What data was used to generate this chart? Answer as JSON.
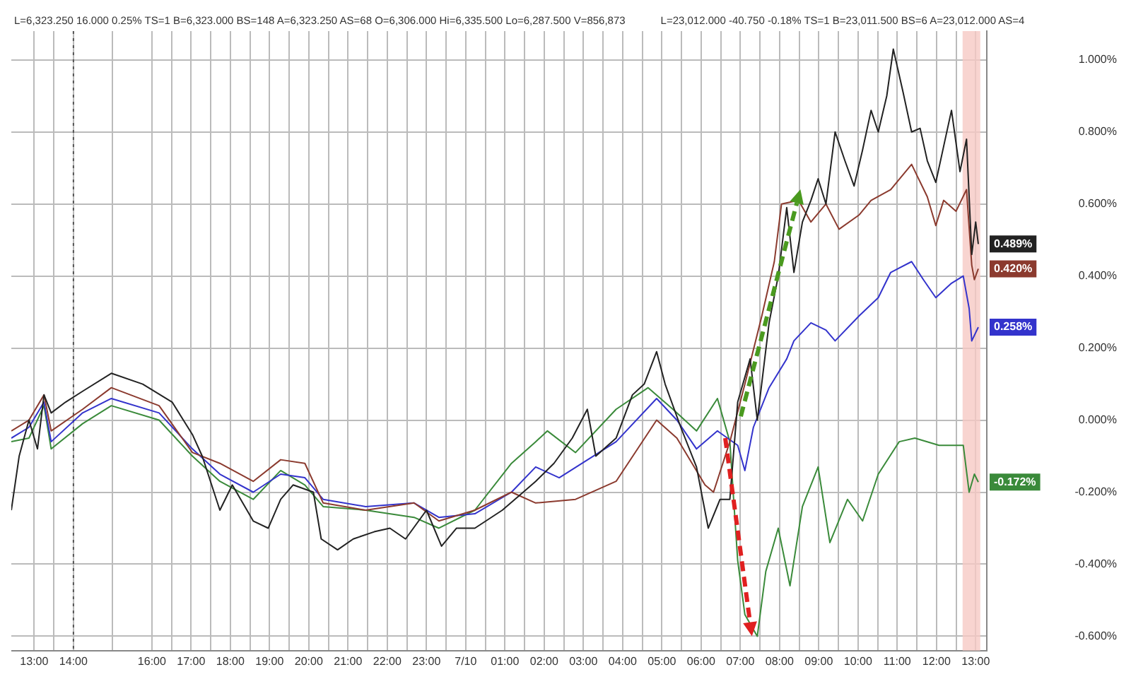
{
  "chart_data": {
    "type": "line",
    "annotations": [
      "L=6,323.250 16.000 0.25% TS=1 B=6,323.000 BS=148 A=6,323.250 AS=68 O=6,306.000 Hi=6,335.500 Lo=6,287.500 V=856,873",
      "L=23,012.000 -40.750 -0.18% TS=1 B=23,011.500 BS=6 A=23,012.000 AS=4"
    ],
    "series": [
      {
        "color": "#222222",
        "x": [
          "--07-09T12:25",
          "--07-09T12:37",
          "--07-09T12:52",
          "--07-09T13:05",
          "--07-09T13:15",
          "--07-09T13:26",
          "--07-09T13:48",
          "--07-09T14:14",
          "--07-09T14:58",
          "--07-09T15:46",
          "--07-09T16:31",
          "--07-09T17:02",
          "--07-09T17:17",
          "--07-09T17:44",
          "--07-09T18:03",
          "--07-09T18:35",
          "--07-09T18:58",
          "--07-09T19:17",
          "--07-09T19:36",
          "--07-09T20:07",
          "--07-09T20:19",
          "--07-09T20:44",
          "--07-09T21:08",
          "--07-09T21:40",
          "--07-09T22:04",
          "--07-09T22:28",
          "--07-09T23:00",
          "--07-09T23:23",
          "--07-09T23:46",
          "--07-10T00:14",
          "--07-10T00:56",
          "--07-10T01:28",
          "--07-10T01:47",
          "--07-10T02:15",
          "--07-10T02:43",
          "--07-10T03:06",
          "--07-10T03:19",
          "--07-10T03:50",
          "--07-10T04:15",
          "--07-10T04:33",
          "--07-10T04:52",
          "--07-10T05:05",
          "--07-10T05:29",
          "--07-10T05:53",
          "--07-10T06:11",
          "--07-10T06:29",
          "--07-10T06:44",
          "--07-10T06:56",
          "--07-10T07:15",
          "--07-10T07:26",
          "--07-10T07:44",
          "--07-10T07:58",
          "--07-10T08:11",
          "--07-10T08:22",
          "--07-10T08:35",
          "--07-10T08:48",
          "--07-10T08:59",
          "--07-10T09:11",
          "--07-10T09:25",
          "--07-10T09:40",
          "--07-10T09:54",
          "--07-10T10:07",
          "--07-10T10:20",
          "--07-10T10:31",
          "--07-10T10:44",
          "--07-10T10:54",
          "--07-10T11:09",
          "--07-10T11:22",
          "--07-10T11:35",
          "--07-10T11:46",
          "--07-10T11:59",
          "--07-10T12:11",
          "--07-10T12:23",
          "--07-10T12:36",
          "--07-10T12:46",
          "--07-10T12:54",
          "--07-10T13:00",
          "--07-10T13:04"
        ],
        "values": [
          -0.25,
          -0.1,
          0.0,
          -0.08,
          0.07,
          0.02,
          0.05,
          0.08,
          0.13,
          0.1,
          0.05,
          -0.04,
          -0.1,
          -0.25,
          -0.18,
          -0.28,
          -0.3,
          -0.22,
          -0.18,
          -0.2,
          -0.33,
          -0.36,
          -0.33,
          -0.31,
          -0.3,
          -0.33,
          -0.25,
          -0.35,
          -0.3,
          -0.3,
          -0.25,
          -0.2,
          -0.17,
          -0.12,
          -0.05,
          0.03,
          -0.1,
          -0.05,
          0.07,
          0.1,
          0.19,
          0.1,
          -0.02,
          -0.13,
          -0.3,
          -0.22,
          -0.22,
          0.05,
          0.17,
          0.0,
          0.27,
          0.4,
          0.59,
          0.41,
          0.55,
          0.61,
          0.67,
          0.6,
          0.8,
          0.72,
          0.65,
          0.75,
          0.86,
          0.8,
          0.9,
          1.03,
          0.91,
          0.8,
          0.81,
          0.72,
          0.66,
          0.76,
          0.86,
          0.69,
          0.78,
          0.46,
          0.55,
          0.489
        ],
        "value_labels": [
          null,
          null,
          null,
          null,
          null,
          null,
          null,
          null,
          null,
          null,
          null,
          null,
          null,
          null,
          null,
          null,
          null,
          null,
          null,
          null,
          null,
          null,
          null,
          null,
          null,
          null,
          null,
          null,
          null,
          null,
          null,
          null,
          null,
          null,
          null,
          null,
          null,
          null,
          null,
          null,
          null,
          null,
          null,
          null,
          null,
          null,
          null,
          null,
          null,
          null,
          null,
          null,
          null,
          null,
          null,
          null,
          null,
          null,
          null,
          null,
          null,
          null,
          null,
          null,
          null,
          null,
          null,
          null,
          null,
          null,
          null,
          null,
          null,
          null,
          null,
          null,
          null,
          "0.489%"
        ]
      },
      {
        "color": "#8b3a2e",
        "x": [
          "--07-09T12:25",
          "--07-09T12:52",
          "--07-09T13:15",
          "--07-09T13:26",
          "--07-09T14:14",
          "--07-09T14:58",
          "--07-09T16:11",
          "--07-09T17:02",
          "--07-09T17:44",
          "--07-09T18:35",
          "--07-09T19:17",
          "--07-09T19:54",
          "--07-09T20:22",
          "--07-09T21:27",
          "--07-09T22:41",
          "--07-09T23:19",
          "--07-10T00:14",
          "--07-10T01:10",
          "--07-10T01:47",
          "--07-10T02:48",
          "--07-10T03:50",
          "--07-10T04:52",
          "--07-10T05:23",
          "--07-10T06:06",
          "--07-10T06:19",
          "--07-10T06:44",
          "--07-10T07:07",
          "--07-10T07:33",
          "--07-10T07:52",
          "--07-10T08:03",
          "--07-10T08:29",
          "--07-10T08:48",
          "--07-10T09:11",
          "--07-10T09:31",
          "--07-10T10:02",
          "--07-10T10:20",
          "--07-10T10:50",
          "--07-10T11:22",
          "--07-10T11:46",
          "--07-10T11:59",
          "--07-10T12:11",
          "--07-10T12:30",
          "--07-10T12:46",
          "--07-10T12:54",
          "--07-10T12:58",
          "--07-10T13:04"
        ],
        "values": [
          -0.03,
          0.0,
          0.07,
          -0.03,
          0.03,
          0.09,
          0.04,
          -0.09,
          -0.12,
          -0.17,
          -0.11,
          -0.12,
          -0.23,
          -0.25,
          -0.23,
          -0.28,
          -0.25,
          -0.2,
          -0.23,
          -0.22,
          -0.17,
          0.0,
          -0.05,
          -0.18,
          -0.2,
          -0.06,
          0.1,
          0.29,
          0.44,
          0.6,
          0.61,
          0.55,
          0.6,
          0.53,
          0.57,
          0.61,
          0.64,
          0.71,
          0.62,
          0.54,
          0.61,
          0.58,
          0.64,
          0.43,
          0.39,
          0.42
        ],
        "value_labels": [
          null,
          null,
          null,
          null,
          null,
          null,
          null,
          null,
          null,
          null,
          null,
          null,
          null,
          null,
          null,
          null,
          null,
          null,
          null,
          null,
          null,
          null,
          null,
          null,
          null,
          null,
          null,
          null,
          null,
          null,
          null,
          null,
          null,
          null,
          null,
          null,
          null,
          null,
          null,
          null,
          null,
          null,
          null,
          null,
          null,
          "0.420%"
        ]
      },
      {
        "color": "#3333cc",
        "x": [
          "--07-09T12:25",
          "--07-09T12:52",
          "--07-09T13:15",
          "--07-09T13:26",
          "--07-09T14:14",
          "--07-09T14:58",
          "--07-09T16:11",
          "--07-09T17:02",
          "--07-09T17:44",
          "--07-09T18:35",
          "--07-09T19:17",
          "--07-09T19:54",
          "--07-09T20:22",
          "--07-09T21:27",
          "--07-09T22:41",
          "--07-09T23:19",
          "--07-10T00:14",
          "--07-10T01:10",
          "--07-10T01:47",
          "--07-10T02:23",
          "--07-10T03:50",
          "--07-10T04:52",
          "--07-10T05:23",
          "--07-10T05:53",
          "--07-10T06:25",
          "--07-10T06:56",
          "--07-10T07:07",
          "--07-10T07:20",
          "--07-10T07:44",
          "--07-10T08:11",
          "--07-10T08:22",
          "--07-10T08:48",
          "--07-10T09:11",
          "--07-10T09:25",
          "--07-10T10:02",
          "--07-10T10:31",
          "--07-10T10:50",
          "--07-10T11:22",
          "--07-10T11:40",
          "--07-10T11:59",
          "--07-10T12:23",
          "--07-10T12:41",
          "--07-10T12:50",
          "--07-10T12:54",
          "--07-10T13:04"
        ],
        "values": [
          -0.05,
          -0.02,
          0.05,
          -0.06,
          0.02,
          0.06,
          0.02,
          -0.08,
          -0.15,
          -0.2,
          -0.15,
          -0.16,
          -0.22,
          -0.24,
          -0.23,
          -0.27,
          -0.26,
          -0.2,
          -0.13,
          -0.16,
          -0.06,
          0.06,
          0.0,
          -0.08,
          -0.03,
          -0.07,
          -0.14,
          -0.02,
          0.09,
          0.17,
          0.22,
          0.27,
          0.25,
          0.22,
          0.29,
          0.34,
          0.41,
          0.44,
          0.39,
          0.34,
          0.38,
          0.4,
          0.31,
          0.22,
          0.258
        ],
        "value_labels": [
          null,
          null,
          null,
          null,
          null,
          null,
          null,
          null,
          null,
          null,
          null,
          null,
          null,
          null,
          null,
          null,
          null,
          null,
          null,
          null,
          null,
          null,
          null,
          null,
          null,
          null,
          null,
          null,
          null,
          null,
          null,
          null,
          null,
          null,
          null,
          null,
          null,
          null,
          null,
          null,
          null,
          null,
          null,
          null,
          "0.258%"
        ]
      },
      {
        "color": "#3a8a3a",
        "x": [
          "--07-09T12:25",
          "--07-09T12:52",
          "--07-09T13:15",
          "--07-09T13:26",
          "--07-09T14:14",
          "--07-09T14:58",
          "--07-09T16:11",
          "--07-09T17:02",
          "--07-09T17:44",
          "--07-09T18:35",
          "--07-09T19:17",
          "--07-09T19:54",
          "--07-09T20:22",
          "--07-09T21:27",
          "--07-09T22:41",
          "--07-09T23:19",
          "--07-10T00:14",
          "--07-10T01:10",
          "--07-10T01:47",
          "--07-10T02:05",
          "--07-10T02:48",
          "--07-10T03:50",
          "--07-10T04:39",
          "--07-10T05:17",
          "--07-10T05:53",
          "--07-10T06:25",
          "--07-10T06:44",
          "--07-10T06:56",
          "--07-10T07:07",
          "--07-10T07:26",
          "--07-10T07:39",
          "--07-10T07:58",
          "--07-10T08:16",
          "--07-10T08:35",
          "--07-10T08:59",
          "--07-10T09:17",
          "--07-10T09:44",
          "--07-10T10:07",
          "--07-10T10:31",
          "--07-10T11:03",
          "--07-10T11:27",
          "--07-10T12:04",
          "--07-10T12:41",
          "--07-10T12:50",
          "--07-10T12:58",
          "--07-10T13:04"
        ],
        "values": [
          -0.06,
          -0.05,
          0.04,
          -0.08,
          -0.01,
          0.04,
          0.0,
          -0.1,
          -0.17,
          -0.22,
          -0.14,
          -0.18,
          -0.24,
          -0.25,
          -0.27,
          -0.3,
          -0.25,
          -0.12,
          -0.06,
          -0.03,
          -0.09,
          0.03,
          0.09,
          0.03,
          -0.03,
          0.06,
          -0.06,
          -0.39,
          -0.54,
          -0.6,
          -0.42,
          -0.3,
          -0.46,
          -0.24,
          -0.13,
          -0.34,
          -0.22,
          -0.28,
          -0.15,
          -0.06,
          -0.05,
          -0.07,
          -0.07,
          -0.2,
          -0.15,
          -0.172
        ],
        "value_labels": [
          null,
          null,
          null,
          null,
          null,
          null,
          null,
          null,
          null,
          null,
          null,
          null,
          null,
          null,
          null,
          null,
          null,
          null,
          null,
          null,
          null,
          null,
          null,
          null,
          null,
          null,
          null,
          null,
          null,
          null,
          null,
          null,
          null,
          null,
          null,
          null,
          null,
          null,
          null,
          null,
          null,
          null,
          null,
          null,
          null,
          "-0.172%"
        ]
      }
    ],
    "xlim": [
      "--07-09T12:25",
      "--07-10T13:17"
    ],
    "xticks": [
      {
        "value": "--07-09T13:00",
        "label": "13:00"
      },
      {
        "value": "--07-09T13:30",
        "label": null
      },
      {
        "value": "--07-09T14:00",
        "label": "14:00"
      },
      {
        "value": "--07-09T15:00",
        "label": null
      },
      {
        "value": "--07-09T16:00",
        "label": "16:00"
      },
      {
        "value": "--07-09T16:30",
        "label": null
      },
      {
        "value": "--07-09T17:00",
        "label": "17:00"
      },
      {
        "value": "--07-09T17:30",
        "label": null
      },
      {
        "value": "--07-09T18:00",
        "label": "18:00"
      },
      {
        "value": "--07-09T18:30",
        "label": null
      },
      {
        "value": "--07-09T19:00",
        "label": "19:00"
      },
      {
        "value": "--07-09T19:30",
        "label": null
      },
      {
        "value": "--07-09T20:00",
        "label": "20:00"
      },
      {
        "value": "--07-09T20:30",
        "label": null
      },
      {
        "value": "--07-09T21:00",
        "label": "21:00"
      },
      {
        "value": "--07-09T21:30",
        "label": null
      },
      {
        "value": "--07-09T22:00",
        "label": "22:00"
      },
      {
        "value": "--07-09T22:30",
        "label": null
      },
      {
        "value": "--07-09T23:00",
        "label": "23:00"
      },
      {
        "value": "--07-09T23:30",
        "label": null
      },
      {
        "value": "--07-10T00:00",
        "label": "7/10"
      },
      {
        "value": "--07-10T00:30",
        "label": null
      },
      {
        "value": "--07-10T01:00",
        "label": "01:00"
      },
      {
        "value": "--07-10T01:30",
        "label": null
      },
      {
        "value": "--07-10T02:00",
        "label": "02:00"
      },
      {
        "value": "--07-10T02:30",
        "label": null
      },
      {
        "value": "--07-10T03:00",
        "label": "03:00"
      },
      {
        "value": "--07-10T03:30",
        "label": null
      },
      {
        "value": "--07-10T04:00",
        "label": "04:00"
      },
      {
        "value": "--07-10T04:30",
        "label": null
      },
      {
        "value": "--07-10T05:00",
        "label": "05:00"
      },
      {
        "value": "--07-10T05:30",
        "label": null
      },
      {
        "value": "--07-10T06:00",
        "label": "06:00"
      },
      {
        "value": "--07-10T06:30",
        "label": null
      },
      {
        "value": "--07-10T07:00",
        "label": "07:00"
      },
      {
        "value": "--07-10T07:30",
        "label": null
      },
      {
        "value": "--07-10T08:00",
        "label": "08:00"
      },
      {
        "value": "--07-10T08:30",
        "label": null
      },
      {
        "value": "--07-10T09:00",
        "label": "09:00"
      },
      {
        "value": "--07-10T09:30",
        "label": null
      },
      {
        "value": "--07-10T10:00",
        "label": "10:00"
      },
      {
        "value": "--07-10T10:30",
        "label": null
      },
      {
        "value": "--07-10T11:00",
        "label": "11:00"
      },
      {
        "value": "--07-10T11:30",
        "label": null
      },
      {
        "value": "--07-10T12:00",
        "label": "12:00"
      },
      {
        "value": "--07-10T12:30",
        "label": null
      },
      {
        "value": "--07-10T13:00",
        "label": "13:00"
      }
    ],
    "ylim": [
      -0.64,
      1.08
    ],
    "yticks": [
      {
        "value": -0.6,
        "label": "-0.600%"
      },
      {
        "value": -0.4,
        "label": "-0.400%"
      },
      {
        "value": -0.2,
        "label": "-0.200%"
      },
      {
        "value": 0,
        "label": "0.000%"
      },
      {
        "value": 0.2,
        "label": "0.200%"
      },
      {
        "value": 0.4,
        "label": "0.400%"
      },
      {
        "value": 0.6,
        "label": "0.600%"
      },
      {
        "value": 0.8,
        "label": "0.800%"
      },
      {
        "value": 1,
        "label": "1.000%"
      }
    ],
    "ref_lines": [
      {
        "axis": "x",
        "value": "--07-09T14:00",
        "line_style": "dotted",
        "color": "#555555"
      }
    ],
    "bands": [
      {
        "axis": "x",
        "from": "--07-10T12:40",
        "to": "--07-10T13:07",
        "color": "#f6c9c4"
      }
    ],
    "grid": true,
    "legend": false,
    "marker": "none",
    "line_style": "solid"
  }
}
